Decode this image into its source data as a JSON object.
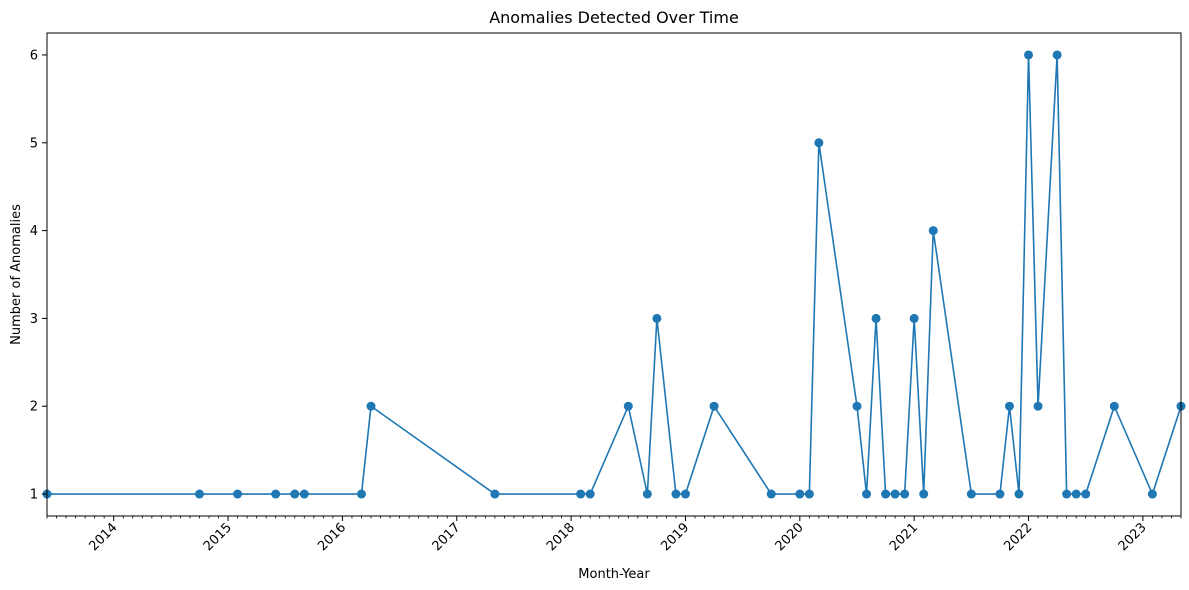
{
  "chart_data": {
    "type": "line",
    "title": "Anomalies Detected Over Time",
    "xlabel": "Month-Year",
    "ylabel": "Number of Anomalies",
    "x_axis_kind": "date",
    "xlim": [
      "2013-06",
      "2023-05"
    ],
    "ylim": [
      0.75,
      6.25
    ],
    "x_tick_labels": [
      "2014",
      "2015",
      "2016",
      "2017",
      "2018",
      "2019",
      "2020",
      "2021",
      "2022",
      "2023"
    ],
    "y_tick_labels": [
      "1",
      "2",
      "3",
      "4",
      "5",
      "6"
    ],
    "grid": false,
    "legend": "none",
    "marker": "circle",
    "colors": {
      "series": "#1f77b4"
    },
    "series": [
      {
        "x": [
          "2013-06",
          "2014-10",
          "2015-02",
          "2015-06",
          "2015-08",
          "2015-09",
          "2016-03",
          "2016-04",
          "2017-05",
          "2018-02",
          "2018-03",
          "2018-07",
          "2018-09",
          "2018-10",
          "2018-12",
          "2019-01",
          "2019-04",
          "2019-10",
          "2020-01",
          "2020-02",
          "2020-03",
          "2020-07",
          "2020-08",
          "2020-09",
          "2020-10",
          "2020-11",
          "2020-12",
          "2021-01",
          "2021-02",
          "2021-03",
          "2021-07",
          "2021-10",
          "2021-11",
          "2021-12",
          "2022-01",
          "2022-02",
          "2022-04",
          "2022-05",
          "2022-06",
          "2022-07",
          "2022-10",
          "2023-02",
          "2023-05"
        ],
        "values": [
          1,
          1,
          1,
          1,
          1,
          1,
          1,
          2,
          1,
          1,
          1,
          2,
          1,
          3,
          1,
          1,
          2,
          1,
          1,
          1,
          5,
          2,
          1,
          3,
          1,
          1,
          1,
          3,
          1,
          4,
          1,
          1,
          2,
          1,
          6,
          2,
          6,
          1,
          1,
          1,
          2,
          1,
          2
        ]
      }
    ]
  }
}
